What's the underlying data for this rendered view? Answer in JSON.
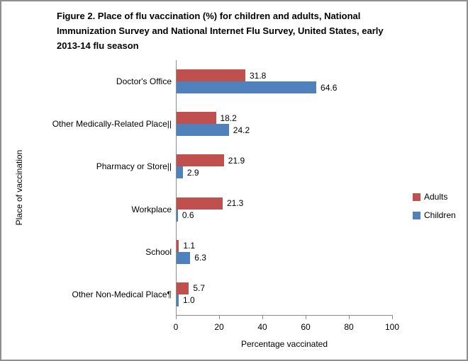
{
  "header": {
    "title_lines": [
      "Figure 2. Place of flu vaccination (%) for children and adults, National",
      "Immunization Survey and National Internet Flu Survey, United States, early",
      "2013-14 flu season"
    ]
  },
  "chart_data": {
    "type": "bar",
    "orientation": "horizontal",
    "title": "Figure 2. Place of flu vaccination (%) for children and adults, National Immunization Survey and National Internet Flu Survey, United States, early 2013-14 flu season",
    "categories": [
      "Doctor's Office",
      "Other Medically-Related Place||",
      "Pharmacy or Store||",
      "Workplace",
      "School",
      "Other Non-Medical Place¶"
    ],
    "series": [
      {
        "name": "Adults",
        "color": "#C0504D",
        "values": [
          31.8,
          18.2,
          21.9,
          21.3,
          1.1,
          5.7
        ]
      },
      {
        "name": "Children",
        "color": "#4F81BD",
        "values": [
          64.6,
          24.2,
          2.9,
          0.6,
          6.3,
          1.0
        ]
      }
    ],
    "xlabel": "Percentage vaccinated",
    "ylabel": "Place of vaccination",
    "xlim": [
      0,
      100
    ],
    "xticks": [
      0,
      20,
      40,
      60,
      80,
      100
    ],
    "legend_position": "right",
    "data_labels": true,
    "grid": false,
    "axis_color": "#8c8c8c"
  }
}
